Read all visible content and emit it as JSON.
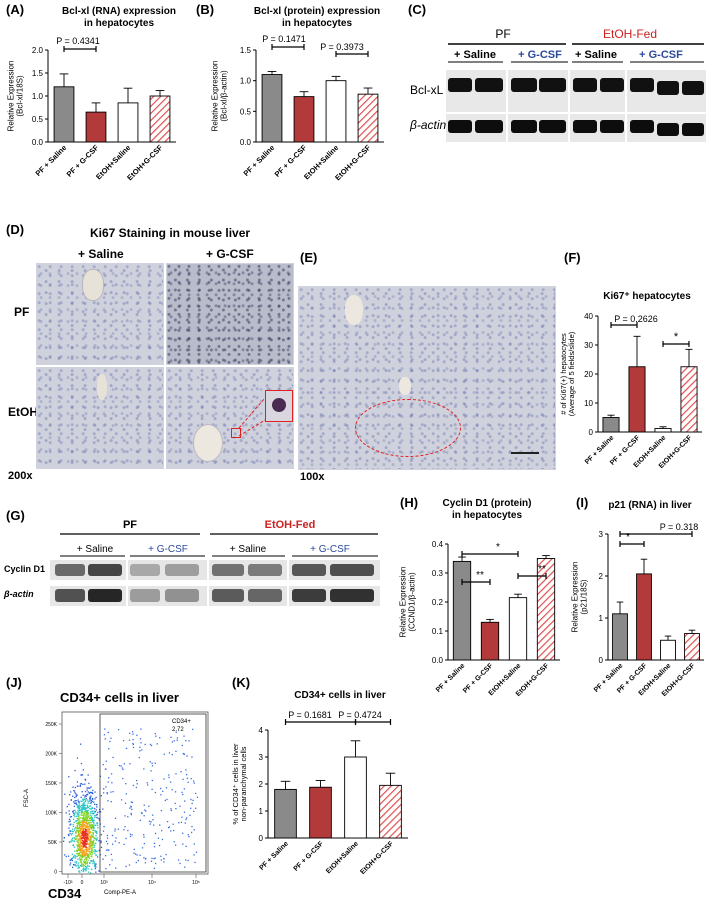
{
  "panels": {
    "A": {
      "letter": "(A)",
      "title": "Bcl-xl (RNA) expression\nin hepatocytes",
      "ylabel": "Relative Expression\n(Bcl-xl/18S)",
      "pvalue": "P = 0.4341"
    },
    "B": {
      "letter": "(B)",
      "title": "Bcl-xl (protein) expression\nin hepatocytes",
      "ylabel": "Relative Expression\n(Bcl-xl/β-actin)",
      "pvalue1": "P = 0.1471",
      "pvalue2": "P = 0.3973"
    },
    "C": {
      "letter": "(C)",
      "header_pf": "PF",
      "header_etoh": "EtOH-Fed",
      "sub_saline_1": "+ Saline",
      "sub_gcsf_1": "+ G-CSF",
      "sub_saline_2": "+ Saline",
      "sub_gcsf_2": "+ G-CSF",
      "row1": "Bcl-xL",
      "row2": "β-actin"
    },
    "D": {
      "letter": "(D)",
      "title": "Ki67 Staining in mouse liver",
      "col1": "+ Saline",
      "col2": "+ G-CSF",
      "row1": "PF",
      "row2": "EtOH",
      "magnification": "200x"
    },
    "E": {
      "letter": "(E)",
      "magnification": "100x"
    },
    "F": {
      "letter": "(F)",
      "title": "Ki67⁺ hepatocytes",
      "ylabel": "# of Ki67(+) hepatocytes\n(Average of 5 fields/slide)",
      "pvalue": "P = 0.2626",
      "star": "*"
    },
    "G": {
      "letter": "(G)",
      "header_pf": "PF",
      "header_etoh": "EtOH-Fed",
      "sub_saline_1": "+ Saline",
      "sub_gcsf_1": "+ G-CSF",
      "sub_saline_2": "+ Saline",
      "sub_gcsf_2": "+ G-CSF",
      "row1": "Cyclin D1",
      "row2": "β-actin"
    },
    "H": {
      "letter": "(H)",
      "title": "Cyclin D1 (protein)\nin hepatocytes",
      "ylabel": "Relative Expression\n(CCND1/β-actin)",
      "sig1": "**",
      "sig2": "*",
      "sig3": "**"
    },
    "I": {
      "letter": "(I)",
      "title": "p21 (RNA) in liver",
      "ylabel": "Relative Expression\n(p21/18S)",
      "sig1": "*",
      "pvalue": "P = 0.318"
    },
    "J": {
      "letter": "(J)",
      "title": "CD34+ cells in liver",
      "gate_label": "CD34+",
      "gate_value": "2.72",
      "ylabel": "FSC-A",
      "xlabel": "Comp-PE-A",
      "xbig": "CD34",
      "yticks": [
        "250K",
        "200K",
        "150K",
        "100K",
        "50K",
        "0"
      ],
      "xticks": [
        "-10³",
        "0",
        "10³",
        "10⁴",
        "10⁵"
      ]
    },
    "K": {
      "letter": "(K)",
      "title": "CD34+ cells in liver",
      "ylabel": "% of CD34⁺ cells in liver\nnon-paranchymal cells",
      "pvalue1": "P = 0.1681",
      "pvalue2": "P = 0.4724"
    }
  },
  "colors": {
    "grey": "#8a8a8a",
    "red": "#b33a3a",
    "white": "#ffffff",
    "hatch": "#e05050",
    "etoh_header": "#cc2222",
    "gcsf_text": "#2a4a9a"
  },
  "chart_data": [
    {
      "id": "A",
      "type": "bar",
      "categories": [
        "PF + Saline",
        "PF + G-CSF",
        "EtOH+Saline",
        "EtOH+G-CSF"
      ],
      "values": [
        1.2,
        0.65,
        0.85,
        1.0
      ],
      "errors": [
        0.28,
        0.2,
        0.32,
        0.12
      ],
      "ylim": [
        0,
        2.0
      ],
      "yticks": [
        0.0,
        0.5,
        1.0,
        1.5,
        2.0
      ]
    },
    {
      "id": "B",
      "type": "bar",
      "categories": [
        "PF + Saline",
        "PF + G-CSF",
        "EtOH+Saline",
        "EtOH+G-CSF"
      ],
      "values": [
        1.1,
        0.74,
        1.0,
        0.78
      ],
      "errors": [
        0.05,
        0.08,
        0.07,
        0.1
      ],
      "ylim": [
        0,
        1.5
      ],
      "yticks": [
        0.0,
        0.5,
        1.0,
        1.5
      ]
    },
    {
      "id": "F",
      "type": "bar",
      "categories": [
        "PF + Saline",
        "PF + G-CSF",
        "EtOH+Saline",
        "EtOH+G-CSF"
      ],
      "values": [
        5,
        22.5,
        1.2,
        22.5
      ],
      "errors": [
        0.8,
        10.5,
        0.6,
        6
      ],
      "ylim": [
        0,
        40
      ],
      "yticks": [
        0,
        10,
        20,
        30,
        40
      ]
    },
    {
      "id": "H",
      "type": "bar",
      "categories": [
        "PF + Saline",
        "PF + G-CSF",
        "EtOH+Saline",
        "EtOH+G-CSF"
      ],
      "values": [
        0.34,
        0.13,
        0.215,
        0.35
      ],
      "errors": [
        0.015,
        0.01,
        0.012,
        0.01
      ],
      "ylim": [
        0,
        0.4
      ],
      "yticks": [
        0.0,
        0.1,
        0.2,
        0.3,
        0.4
      ]
    },
    {
      "id": "I",
      "type": "bar",
      "categories": [
        "PF + Saline",
        "PF + G-CSF",
        "EtOH+Saline",
        "EtOH+G-CSF"
      ],
      "values": [
        1.1,
        2.05,
        0.47,
        0.63
      ],
      "errors": [
        0.28,
        0.35,
        0.1,
        0.08
      ],
      "ylim": [
        0,
        3
      ],
      "yticks": [
        0,
        1,
        2,
        3
      ]
    },
    {
      "id": "K",
      "type": "bar",
      "categories": [
        "PF + Saline",
        "PF + G-CSF",
        "EtOH+Saline",
        "EtOH+G-CSF"
      ],
      "values": [
        1.8,
        1.88,
        3.0,
        1.95
      ],
      "errors": [
        0.3,
        0.25,
        0.6,
        0.45
      ],
      "ylim": [
        0,
        4
      ],
      "yticks": [
        0,
        1,
        2,
        3,
        4
      ]
    }
  ]
}
